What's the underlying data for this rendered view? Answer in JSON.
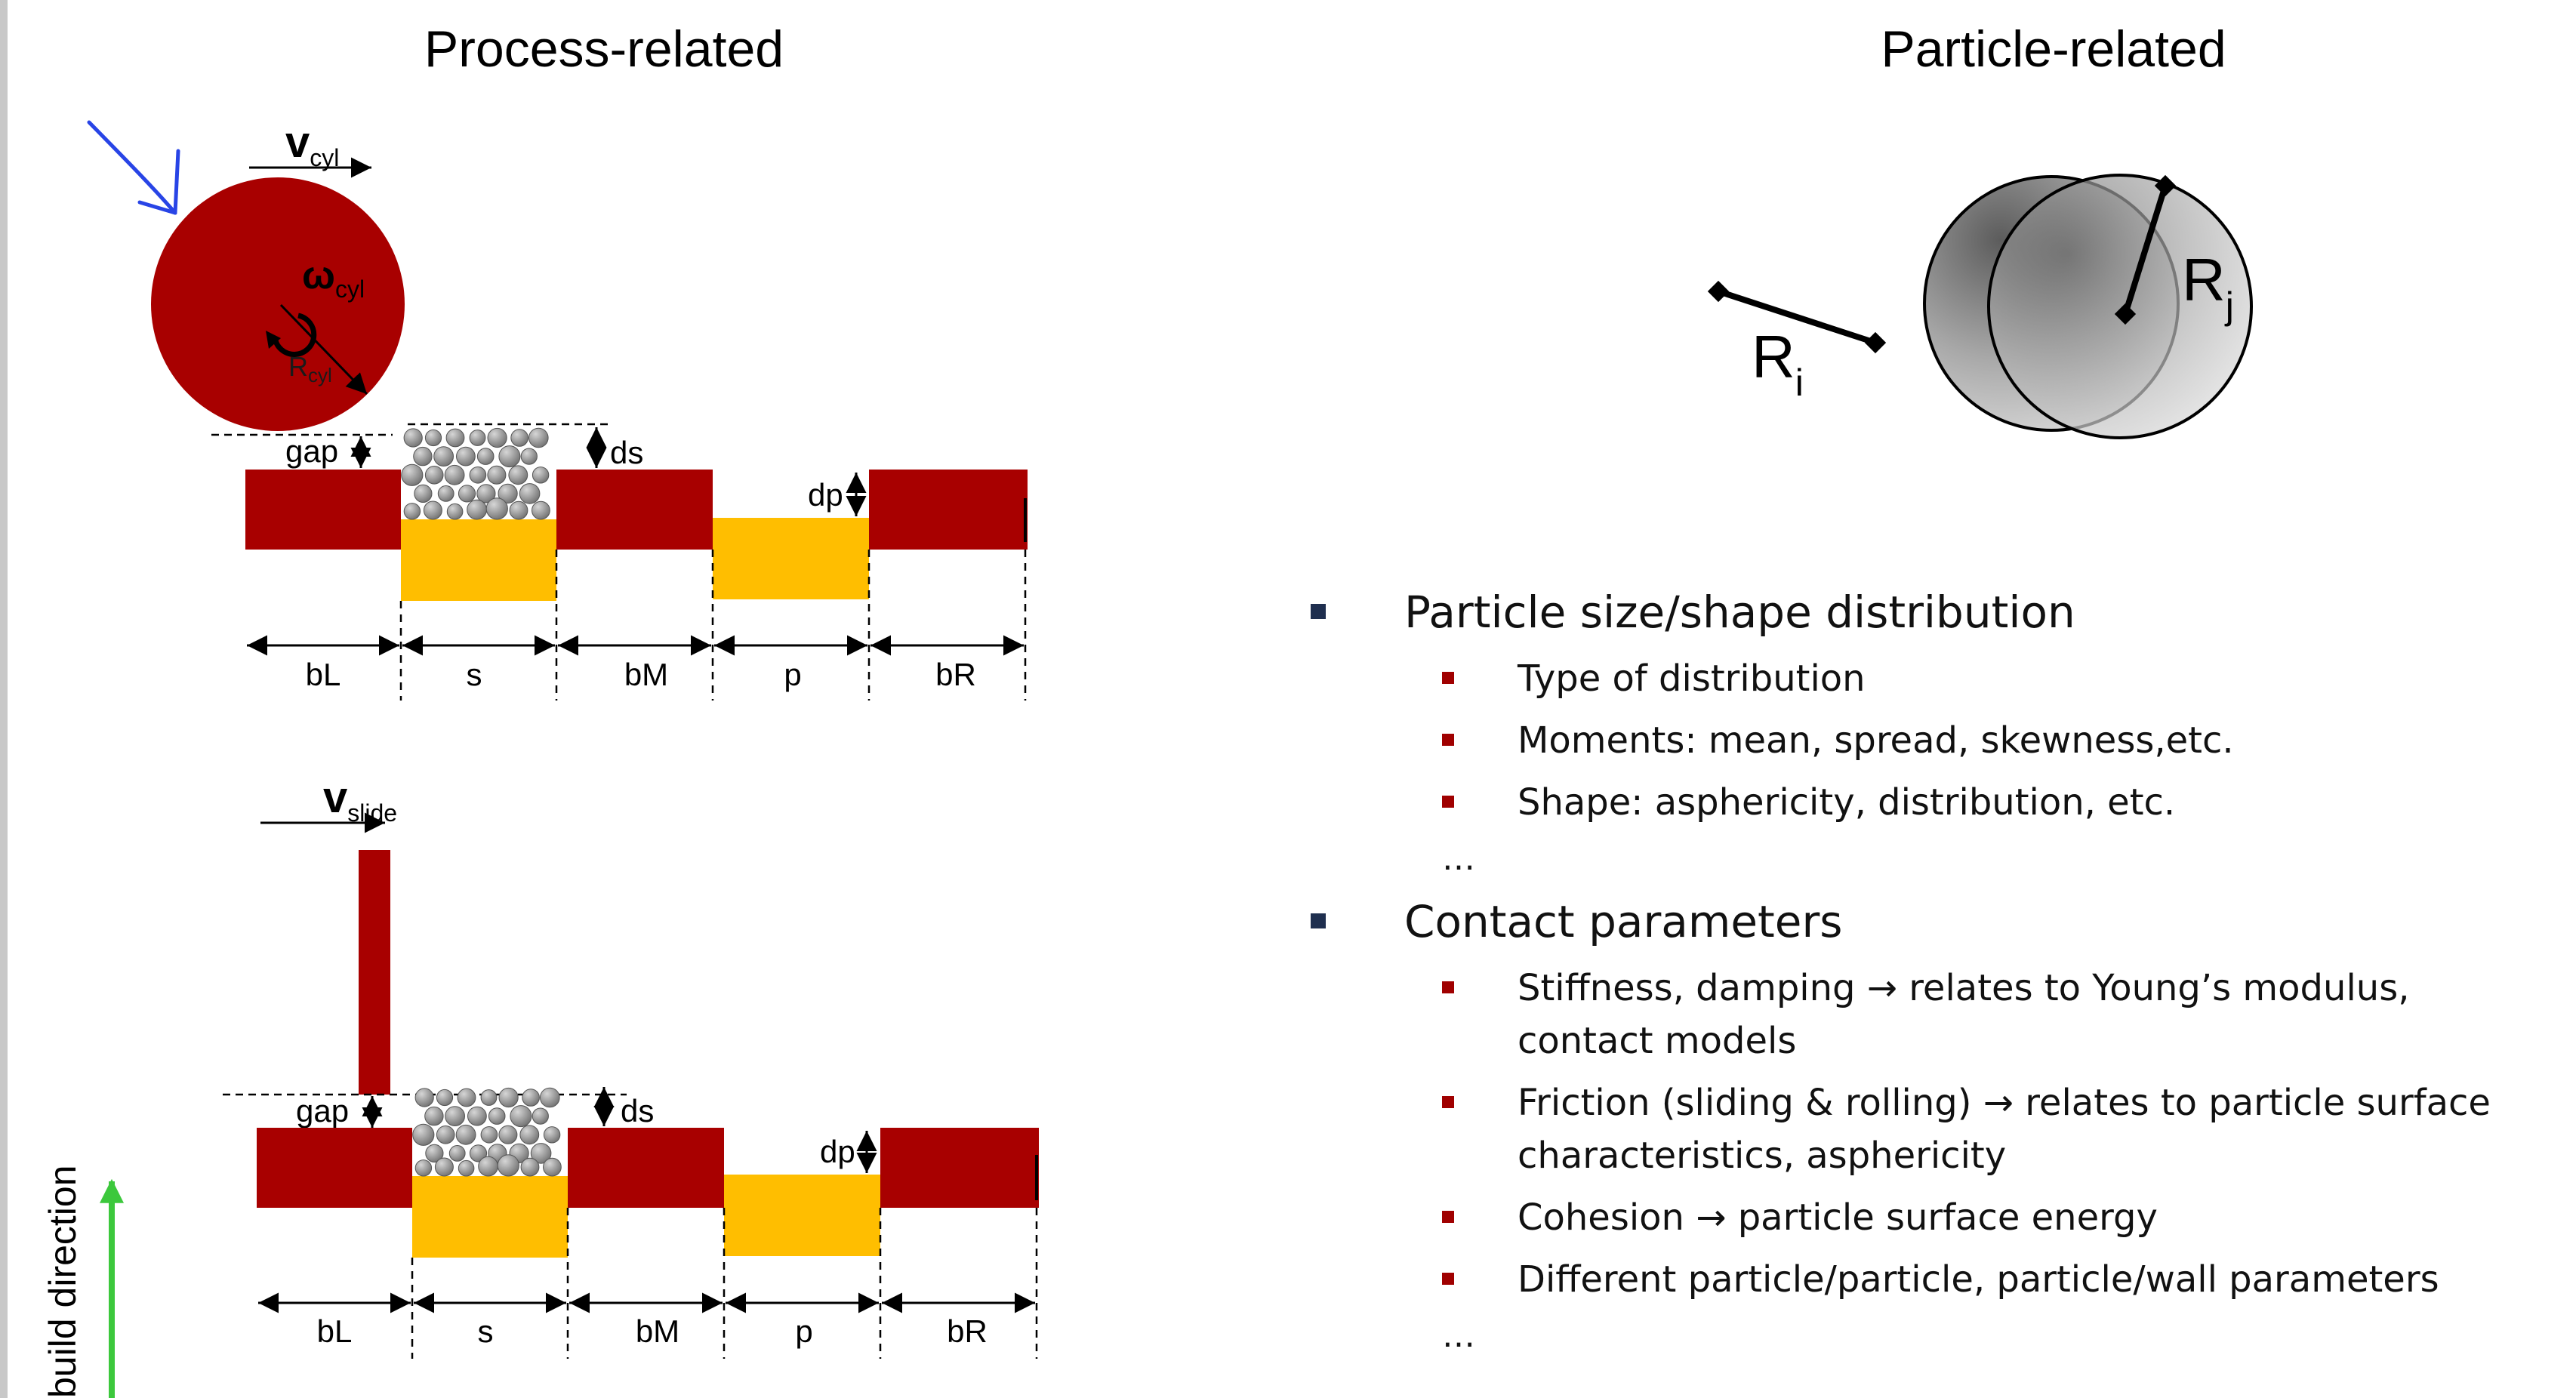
{
  "headings": {
    "process": "Process-related",
    "particle": "Particle-related"
  },
  "roller": {
    "velocity": "v",
    "velocity_sub": "cyl",
    "omega": "ω",
    "omega_sub": "cyl",
    "radius": "R",
    "radius_sub": "cyl"
  },
  "slide": {
    "velocity": "v",
    "velocity_sub": "slide"
  },
  "labels": {
    "gap": "gap",
    "ds": "ds",
    "dp": "dp",
    "bL": "bL",
    "s": "s",
    "bM": "bM",
    "p": "p",
    "bR": "bR"
  },
  "build_direction": "build direction",
  "spheres": {
    "ri": "R",
    "ri_sub": "i",
    "rj": "R",
    "rj_sub": "j"
  },
  "bullets": [
    {
      "text": "Particle size/shape distribution",
      "sub": [
        "Type of distribution",
        "Moments: mean, spread, skewness,etc.",
        "Shape: asphericity, distribution, etc."
      ],
      "ellipsis": "…"
    },
    {
      "text": "Contact parameters",
      "sub": [
        "Stiffness, damping → relates to Young’s modulus, contact models",
        "Friction (sliding & rolling) → relates to particle surface characteristics, asphericity",
        "Cohesion → particle surface energy",
        "Different particle/particle, particle/wall parameters"
      ],
      "ellipsis": "…"
    }
  ],
  "colors": {
    "dark_red": "#a80000",
    "yellow": "#ffbe00",
    "particle_grey": "#8c8c8c",
    "arrow_green": "#3cc83c",
    "annotation_blue": "#2844e6"
  }
}
